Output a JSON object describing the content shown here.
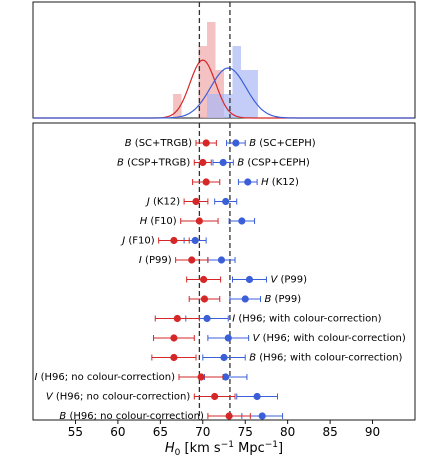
{
  "chart_data": {
    "type": "scatter",
    "xlabel_main": "H",
    "xlabel_sub": "0",
    "xlabel_unit_a": " [km s",
    "xlabel_sup_a": "−1",
    "xlabel_unit_b": " Mpc",
    "xlabel_sup_b": "−1",
    "xlabel_unit_c": "]",
    "xlim": [
      50,
      95
    ],
    "xticks": [
      "55",
      "60",
      "65",
      "70",
      "75",
      "80",
      "85",
      "90"
    ],
    "reference_lines": [
      69.6,
      73.2
    ],
    "colors": {
      "trgb": "#d62728",
      "ceph": "#3b5fd9",
      "trgb_fill": "#f0a8a8",
      "ceph_fill": "#aab8f5"
    },
    "rows": [
      {
        "left": "B (SC+TRGB)",
        "right": "B (SC+CEPH)",
        "red": {
          "x": 70.4,
          "lo": 69.2,
          "hi": 71.6
        },
        "blue": {
          "x": 73.9,
          "lo": 72.8,
          "hi": 75.0
        }
      },
      {
        "left": "B (CSP+TRGB)",
        "right": "B (CSP+CEPH)",
        "red": {
          "x": 70.0,
          "lo": 69.0,
          "hi": 71.0
        },
        "blue": {
          "x": 72.4,
          "lo": 71.2,
          "hi": 73.6
        }
      },
      {
        "left": "",
        "right": "H (K12)",
        "red": {
          "x": 70.4,
          "lo": 68.8,
          "hi": 72.0
        },
        "blue": {
          "x": 75.3,
          "lo": 74.2,
          "hi": 76.4
        }
      },
      {
        "left": "J (K12)",
        "right": "",
        "red": {
          "x": 69.2,
          "lo": 67.8,
          "hi": 70.6
        },
        "blue": {
          "x": 72.7,
          "lo": 71.4,
          "hi": 74.0
        }
      },
      {
        "left": "H (F10)",
        "right": "",
        "red": {
          "x": 69.6,
          "lo": 67.4,
          "hi": 71.8
        },
        "blue": {
          "x": 74.6,
          "lo": 73.1,
          "hi": 76.1
        }
      },
      {
        "left": "J (F10)",
        "right": "",
        "red": {
          "x": 66.6,
          "lo": 64.8,
          "hi": 68.4
        },
        "blue": {
          "x": 69.1,
          "lo": 67.8,
          "hi": 70.4
        }
      },
      {
        "left": "I (P99)",
        "right": "",
        "red": {
          "x": 68.7,
          "lo": 66.8,
          "hi": 70.6
        },
        "blue": {
          "x": 72.2,
          "lo": 70.6,
          "hi": 73.8
        }
      },
      {
        "left": "",
        "right": "V (P99)",
        "red": {
          "x": 70.1,
          "lo": 68.1,
          "hi": 72.1
        },
        "blue": {
          "x": 75.5,
          "lo": 73.5,
          "hi": 77.5
        }
      },
      {
        "left": "",
        "right": "B (P99)",
        "red": {
          "x": 70.2,
          "lo": 68.4,
          "hi": 72.0
        },
        "blue": {
          "x": 75.0,
          "lo": 73.2,
          "hi": 76.8
        }
      },
      {
        "left": "",
        "right": "I (H96; with colour-correction)",
        "red": {
          "x": 67.0,
          "lo": 64.4,
          "hi": 69.6
        },
        "blue": {
          "x": 70.5,
          "lo": 68.0,
          "hi": 73.0
        }
      },
      {
        "left": "",
        "right": "V (H96; with colour-correction)",
        "red": {
          "x": 66.6,
          "lo": 64.2,
          "hi": 69.0
        },
        "blue": {
          "x": 73.0,
          "lo": 70.6,
          "hi": 75.4
        }
      },
      {
        "left": "",
        "right": "B (H96; with colour-correction)",
        "red": {
          "x": 66.6,
          "lo": 64.0,
          "hi": 69.2
        },
        "blue": {
          "x": 72.5,
          "lo": 70.0,
          "hi": 75.0
        }
      },
      {
        "left": "I (H96; no colour-correction)",
        "right": "",
        "red": {
          "x": 69.8,
          "lo": 67.2,
          "hi": 72.4
        },
        "blue": {
          "x": 72.7,
          "lo": 70.2,
          "hi": 75.2
        }
      },
      {
        "left": "V (H96; no colour-correction)",
        "right": "",
        "red": {
          "x": 71.4,
          "lo": 69.0,
          "hi": 73.8
        },
        "blue": {
          "x": 76.4,
          "lo": 74.0,
          "hi": 78.8
        }
      },
      {
        "left": "B (H96; no colour-correction)",
        "right": "",
        "red": {
          "x": 73.1,
          "lo": 70.6,
          "hi": 75.6
        },
        "blue": {
          "x": 77.0,
          "lo": 74.6,
          "hi": 79.4
        }
      }
    ],
    "histogram_top": {
      "bin_width": 1.0,
      "bins_min": 66.5,
      "red_counts": [
        1,
        0,
        0,
        3,
        4,
        2,
        0,
        0,
        0,
        0,
        0
      ],
      "blue_counts": [
        0,
        0,
        0,
        0,
        1,
        1,
        1,
        3,
        2,
        2,
        0
      ],
      "red_kde_peak": 70.0,
      "blue_kde_peak": 73.0
    }
  }
}
